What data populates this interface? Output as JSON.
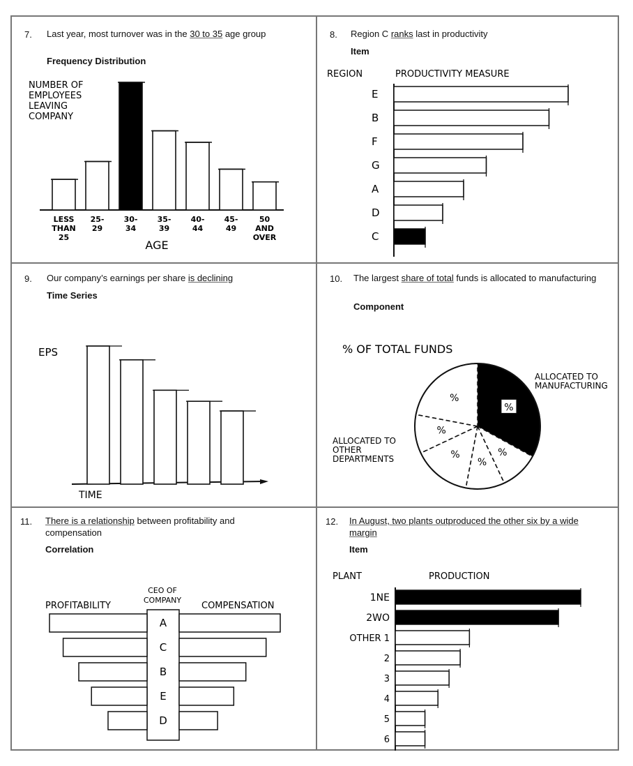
{
  "panels": [
    {
      "number": "7.",
      "caption_pre": "Last year, most turnover was in the ",
      "caption_em": "30 to 35",
      "caption_post": " age group",
      "type": "Frequency Distribution"
    },
    {
      "number": "8.",
      "caption_pre": "Region C ",
      "caption_em": "ranks",
      "caption_post": " last in productivity",
      "type": "Item"
    },
    {
      "number": "9.",
      "caption_pre": "Our company’s earnings per share ",
      "caption_em": "is declining",
      "caption_post": "",
      "type": "Time Series"
    },
    {
      "number": "10.",
      "caption_pre": "The largest ",
      "caption_em": "share of total",
      "caption_post": " funds is allocated to manufacturing",
      "type": "Component"
    },
    {
      "number": "11.",
      "caption_pre": "",
      "caption_em": "There is a relationship",
      "caption_post": " between profitability and compensation",
      "type": "Correlation"
    },
    {
      "number": "12.",
      "caption_pre": "In August, two plants outproduced the other six by a wide margin",
      "caption_em": "",
      "caption_post": "",
      "type": "Item"
    }
  ],
  "chart_data": [
    {
      "type": "bar",
      "id": "freq",
      "ylabel": "NUMBER OF EMPLOYEES LEAVING COMPANY",
      "xlabel": "AGE",
      "categories": [
        "LESS THAN 25",
        "25-29",
        "30-34",
        "35-39",
        "40-44",
        "45-49",
        "50 AND OVER"
      ],
      "values": [
        2.4,
        3.8,
        10,
        6.2,
        5.3,
        3.2,
        2.2
      ],
      "highlight": "30-34"
    },
    {
      "type": "bar",
      "id": "productivity",
      "orientation": "horizontal",
      "title": "PRODUCTIVITY MEASURE",
      "category_header": "REGION",
      "categories": [
        "E",
        "B",
        "F",
        "G",
        "A",
        "D",
        "C"
      ],
      "values": [
        10,
        8.9,
        7.4,
        5.3,
        4.0,
        2.8,
        1.8
      ],
      "highlight": "C"
    },
    {
      "type": "bar",
      "id": "eps",
      "ylabel": "EPS",
      "xlabel": "TIME",
      "values": [
        10,
        9,
        6.8,
        6.0,
        5.3
      ]
    },
    {
      "type": "pie",
      "id": "funds",
      "title": "% OF TOTAL FUNDS",
      "slice_label": "%",
      "label_highlight": "ALLOCATED TO MANUFACTURING",
      "label_other": "ALLOCATED TO OTHER DEPARTMENTS",
      "values": [
        33,
        10,
        10,
        15,
        10,
        22
      ],
      "highlight_index": 0
    },
    {
      "type": "bar",
      "id": "correlation",
      "orientation": "paired-horizontal",
      "left_title": "PROFITABILITY",
      "center_title": "CEO OF COMPANY",
      "right_title": "COMPENSATION",
      "categories": [
        "A",
        "C",
        "B",
        "E",
        "D"
      ],
      "left_values": [
        10,
        8.6,
        7.0,
        5.7,
        4.0
      ],
      "right_values": [
        10,
        8.6,
        6.6,
        5.4,
        3.8
      ]
    },
    {
      "type": "bar",
      "id": "production",
      "orientation": "horizontal",
      "title": "PRODUCTION",
      "category_header": "PLANT",
      "categories": [
        "1NE",
        "2WO",
        "OTHER 1",
        "2",
        "3",
        "4",
        "5",
        "6"
      ],
      "values": [
        10,
        8.8,
        4.0,
        3.5,
        2.9,
        2.3,
        1.6,
        1.6
      ],
      "highlight_count": 2
    }
  ]
}
